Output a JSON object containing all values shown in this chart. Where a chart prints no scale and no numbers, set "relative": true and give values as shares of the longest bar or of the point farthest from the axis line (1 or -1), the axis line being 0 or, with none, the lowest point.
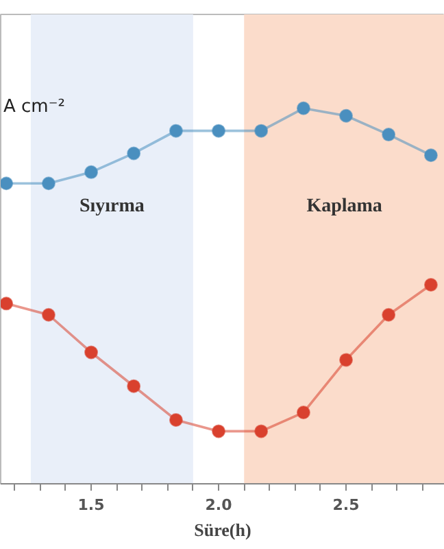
{
  "chart_data": {
    "type": "line",
    "relative": true,
    "xlabel": "Süre(h)",
    "annotations": [
      "A cm⁻²"
    ],
    "x": [
      1.167,
      1.333,
      1.5,
      1.667,
      1.833,
      2.0,
      2.167,
      2.333,
      2.5,
      2.667,
      2.833
    ],
    "series": [
      {
        "color": "#4a8fbf",
        "values": [
          0.8,
          0.8,
          0.83,
          0.88,
          0.94,
          0.94,
          0.94,
          1.0,
          0.98,
          0.93,
          0.875
        ]
      },
      {
        "color": "#d9412e",
        "values": [
          0.48,
          0.45,
          0.35,
          0.26,
          0.17,
          0.14,
          0.14,
          0.19,
          0.33,
          0.45,
          0.53
        ]
      }
    ],
    "xlim": [
      1.145,
      2.887
    ],
    "xticks": [
      {
        "value": 1.2,
        "label": null
      },
      {
        "value": 1.3,
        "label": null
      },
      {
        "value": 1.4,
        "label": null
      },
      {
        "value": 1.5,
        "label": "1.5"
      },
      {
        "value": 1.6,
        "label": null
      },
      {
        "value": 1.7,
        "label": null
      },
      {
        "value": 1.8,
        "label": null
      },
      {
        "value": 1.9,
        "label": null
      },
      {
        "value": 2.0,
        "label": "2.0"
      },
      {
        "value": 2.1,
        "label": null
      },
      {
        "value": 2.2,
        "label": null
      },
      {
        "value": 2.3,
        "label": null
      },
      {
        "value": 2.4,
        "label": null
      },
      {
        "value": 2.5,
        "label": "2.5"
      },
      {
        "value": 2.6,
        "label": null
      },
      {
        "value": 2.7,
        "label": null
      },
      {
        "value": 2.8,
        "label": null
      }
    ],
    "bands": [
      {
        "axis": "x",
        "from": 1.263,
        "to": 1.9,
        "label": "Sıyırma",
        "color": "#e9eff9"
      },
      {
        "axis": "x",
        "from": 2.1,
        "to": 2.887,
        "label": "Kaplama",
        "color": "#fbdccb"
      }
    ],
    "marker": "circle",
    "line_style": "solid",
    "grid": false
  }
}
